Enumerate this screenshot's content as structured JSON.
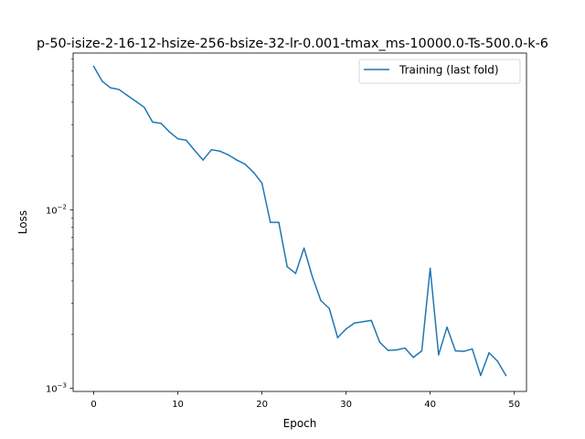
{
  "chart_data": {
    "type": "line",
    "title": "p-50-isize-2-16-12-hsize-256-bsize-32-lr-0.001-tmax_ms-10000.0-Ts-500.0-k-6",
    "xlabel": "Epoch",
    "ylabel": "Loss",
    "xlim": [
      -2.45,
      51.45
    ],
    "ylim": [
      0.00096,
      0.0755
    ],
    "yscale": "log",
    "grid": false,
    "legend_position": "top-right",
    "x_ticks": [
      0,
      10,
      20,
      30,
      40,
      50
    ],
    "x_tick_labels": [
      "0",
      "10",
      "20",
      "30",
      "40",
      "50"
    ],
    "y_ticks": [
      0.01,
      0.001
    ],
    "y_tick_labels": [
      "10−2",
      "10−3"
    ],
    "series": [
      {
        "name": "Training (last fold)",
        "color": "#1f77b4",
        "x": [
          0,
          1,
          2,
          3,
          4,
          5,
          6,
          7,
          8,
          9,
          10,
          11,
          12,
          13,
          14,
          15,
          16,
          17,
          18,
          19,
          20,
          21,
          22,
          23,
          24,
          25,
          26,
          27,
          28,
          29,
          30,
          31,
          32,
          33,
          34,
          35,
          36,
          37,
          38,
          39,
          40,
          41,
          42,
          43,
          44,
          45,
          46,
          47,
          48,
          49
        ],
        "values": [
          0.0635,
          0.0525,
          0.0482,
          0.0472,
          0.0437,
          0.0405,
          0.0375,
          0.031,
          0.0305,
          0.0273,
          0.025,
          0.0245,
          0.0215,
          0.019,
          0.0217,
          0.0213,
          0.0203,
          0.019,
          0.018,
          0.0162,
          0.0141,
          0.0085,
          0.0085,
          0.0048,
          0.0044,
          0.0061,
          0.0042,
          0.0031,
          0.0028,
          0.00192,
          0.00215,
          0.00232,
          0.00236,
          0.0024,
          0.00181,
          0.00163,
          0.00164,
          0.00168,
          0.00149,
          0.00162,
          0.0047,
          0.00154,
          0.0022,
          0.00162,
          0.00161,
          0.00166,
          0.00118,
          0.00158,
          0.00142,
          0.00118
        ]
      }
    ]
  }
}
